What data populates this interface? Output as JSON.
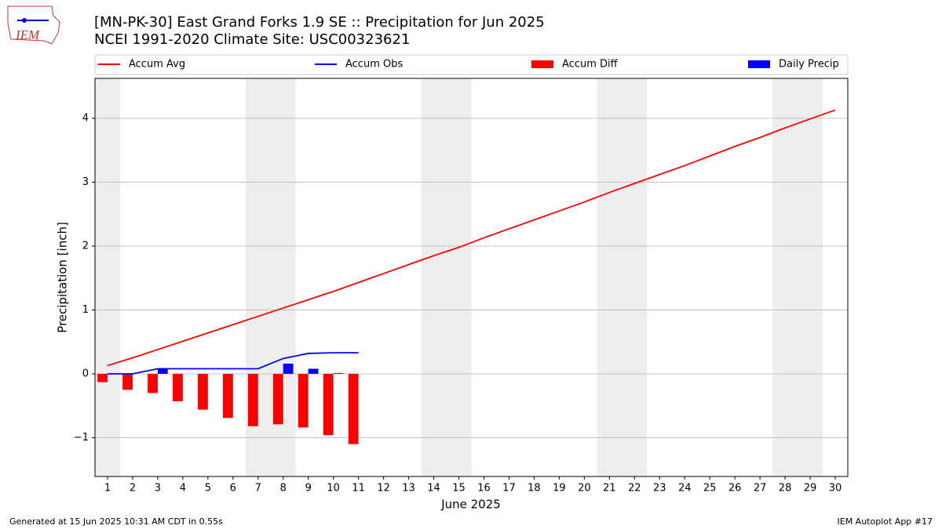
{
  "logo": "IEM",
  "footer": {
    "left": "Generated at 15 Jun 2025 10:31 AM CDT in 0.55s",
    "right": "IEM Autoplot App #17"
  },
  "chart_data": {
    "type": "combo",
    "title": "[MN-PK-30] East Grand Forks 1.9 SE :: Precipitation for Jun 2025",
    "subtitle": "NCEI 1991-2020 Climate Site: USC00323621",
    "x_label": "June 2025",
    "y_label": "Precipitation [inch]",
    "x": [
      1,
      2,
      3,
      4,
      5,
      6,
      7,
      8,
      9,
      10,
      11,
      12,
      13,
      14,
      15,
      16,
      17,
      18,
      19,
      20,
      21,
      22,
      23,
      24,
      25,
      26,
      27,
      28,
      29,
      30
    ],
    "xlim": [
      0.5,
      30.5
    ],
    "xticks": [
      1,
      2,
      3,
      4,
      5,
      6,
      7,
      8,
      9,
      10,
      11,
      12,
      13,
      14,
      15,
      16,
      17,
      18,
      19,
      20,
      21,
      22,
      23,
      24,
      25,
      26,
      27,
      28,
      29,
      30
    ],
    "ylim": [
      -1.607,
      4.626
    ],
    "yticks": [
      {
        "value": -1,
        "label": "−1"
      },
      0,
      1,
      2,
      3,
      4
    ],
    "grid": true,
    "shaded_ranges": [
      [
        0.5,
        1.5
      ],
      [
        6.5,
        8.5
      ],
      [
        13.5,
        15.5
      ],
      [
        20.5,
        22.5
      ],
      [
        27.5,
        29.5
      ]
    ],
    "shade_color": "#eeeeee",
    "series": [
      {
        "name": "Accum Avg",
        "kind": "line",
        "color": "#ff0000",
        "values": [
          0.13,
          0.25,
          0.38,
          0.51,
          0.64,
          0.77,
          0.9,
          1.03,
          1.16,
          1.29,
          1.43,
          1.57,
          1.71,
          1.85,
          1.98,
          2.13,
          2.27,
          2.41,
          2.55,
          2.69,
          2.84,
          2.98,
          3.12,
          3.26,
          3.41,
          3.56,
          3.7,
          3.85,
          3.99,
          4.13
        ]
      },
      {
        "name": "Accum Obs",
        "kind": "line",
        "color": "#0000ff",
        "values": [
          0,
          0,
          0.08,
          0.08,
          0.08,
          0.08,
          0.08,
          0.24,
          0.32,
          0.33,
          0.33,
          null,
          null,
          null,
          null,
          null,
          null,
          null,
          null,
          null,
          null,
          null,
          null,
          null,
          null,
          null,
          null,
          null,
          null,
          null
        ]
      },
      {
        "name": "Accum Diff",
        "kind": "bar",
        "color": "#ff0000",
        "values": [
          -0.13,
          -0.25,
          -0.3,
          -0.43,
          -0.56,
          -0.69,
          -0.82,
          -0.79,
          -0.84,
          -0.96,
          -1.1,
          null,
          null,
          null,
          null,
          null,
          null,
          null,
          null,
          null,
          null,
          null,
          null,
          null,
          null,
          null,
          null,
          null,
          null,
          null
        ]
      },
      {
        "name": "Daily Precip",
        "kind": "bar",
        "color": "#0000ff",
        "values": [
          0,
          0,
          0.08,
          0,
          0,
          0,
          0,
          0.16,
          0.08,
          0.01,
          0,
          null,
          null,
          null,
          null,
          null,
          null,
          null,
          null,
          null,
          null,
          null,
          null,
          null,
          null,
          null,
          null,
          null,
          null,
          null
        ]
      }
    ]
  }
}
